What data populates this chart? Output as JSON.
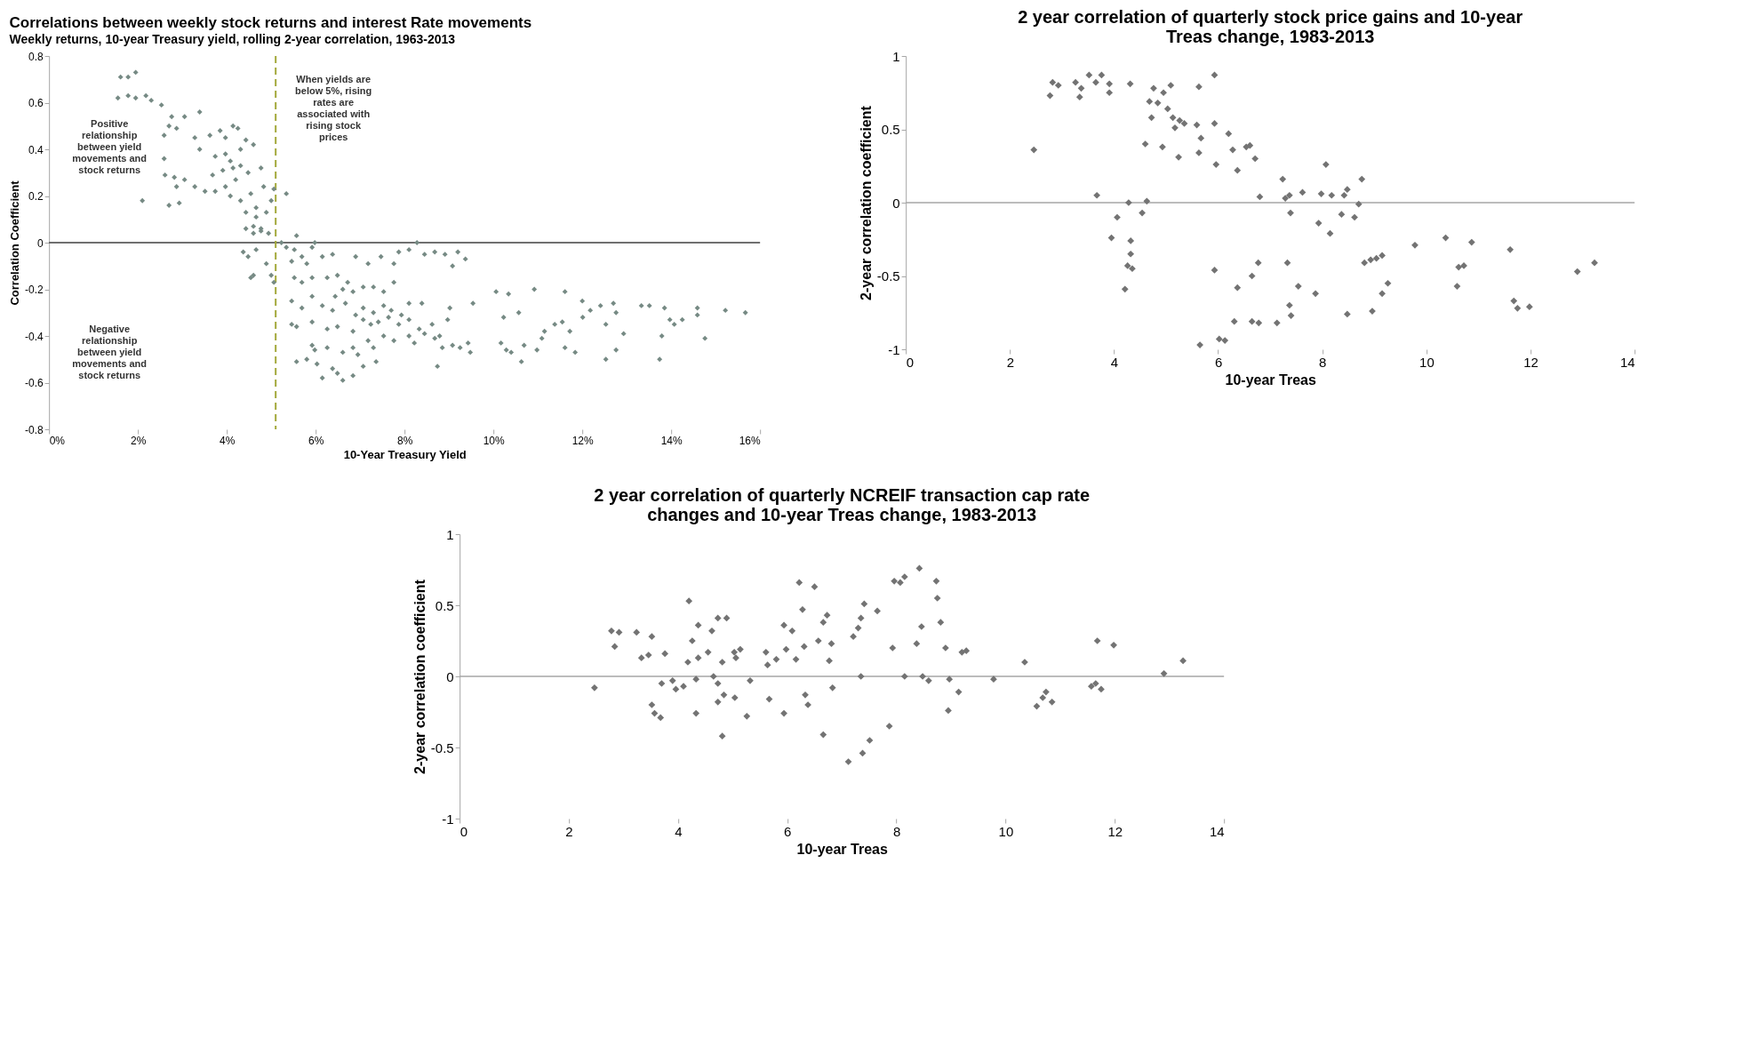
{
  "chart_data": [
    {
      "type": "scatter",
      "title": "Correlations between weekly stock returns and interest Rate movements",
      "subtitle": "Weekly returns, 10-year Treasury yield, rolling 2-year correlation, 1963-2013",
      "xlabel": "10-Year Treasury Yield",
      "ylabel": "Correlation Coefficient",
      "color": "#768a84",
      "marker": "diamond",
      "grid": false,
      "legend": false,
      "xlim": [
        0,
        16
      ],
      "ylim": [
        -0.8,
        0.8
      ],
      "xticks": [
        {
          "value": 0,
          "label": "0%"
        },
        {
          "value": 2,
          "label": "2%"
        },
        {
          "value": 4,
          "label": "4%"
        },
        {
          "value": 6,
          "label": "6%"
        },
        {
          "value": 8,
          "label": "8%"
        },
        {
          "value": 10,
          "label": "10%"
        },
        {
          "value": 12,
          "label": "12%"
        },
        {
          "value": 14,
          "label": "14%"
        },
        {
          "value": 16,
          "label": "16%"
        }
      ],
      "yticks": [
        -0.8,
        -0.6,
        -0.4,
        -0.2,
        0,
        0.2,
        0.4,
        0.6,
        0.8
      ],
      "ref_lines": [
        {
          "axis": "x",
          "value": 5.1,
          "color": "#a3a83a",
          "line_style": "dashed"
        },
        {
          "axis": "y",
          "value": 0,
          "color": "#404040"
        }
      ],
      "annotations": [
        "Positive relationship between yield movements and stock returns",
        "When yields are below 5%, rising rates are associated with rising stock prices",
        "Negative relationship between yield movements and stock returns"
      ],
      "x": [
        1.61,
        1.78,
        1.95,
        1.55,
        1.78,
        1.95,
        2.18,
        2.3,
        2.53,
        2.76,
        3.05,
        3.39,
        2.59,
        2.7,
        2.87,
        2.59,
        2.61,
        2.82,
        3.05,
        2.87,
        2.7,
        2.93,
        2.1,
        3.28,
        3.39,
        3.28,
        3.51,
        3.62,
        3.85,
        3.97,
        4.14,
        4.25,
        3.74,
        3.97,
        4.08,
        4.31,
        4.43,
        4.6,
        3.68,
        3.91,
        4.14,
        4.31,
        3.97,
        4.2,
        4.48,
        3.74,
        4.08,
        4.31,
        4.54,
        4.77,
        4.83,
        4.43,
        4.66,
        4.6,
        4.77,
        4.94,
        5.06,
        5.0,
        5.34,
        4.66,
        4.89,
        4.43,
        4.6,
        4.77,
        4.37,
        4.48,
        4.66,
        4.54,
        4.6,
        4.89,
        5.0,
        5.06,
        5.23,
        5.34,
        5.57,
        5.52,
        5.69,
        5.92,
        5.98,
        5.8,
        5.46,
        5.52,
        5.69,
        5.92,
        6.15,
        6.38,
        6.26,
        6.49,
        6.72,
        6.9,
        7.18,
        7.47,
        7.76,
        7.87,
        8.1,
        8.28,
        8.45,
        8.68,
        8.91,
        9.2,
        9.37,
        9.08,
        7.07,
        6.84,
        6.61,
        6.44,
        7.3,
        7.53,
        7.76,
        5.46,
        5.69,
        5.92,
        6.15,
        6.38,
        6.67,
        6.9,
        7.07,
        7.3,
        7.53,
        7.7,
        7.93,
        8.1,
        8.39,
        5.46,
        5.57,
        5.92,
        6.26,
        6.49,
        6.84,
        7.07,
        7.24,
        7.41,
        7.64,
        7.87,
        8.1,
        8.33,
        8.45,
        8.62,
        8.79,
        8.97,
        9.02,
        7.18,
        7.3,
        7.53,
        7.76,
        8.1,
        8.22,
        8.68,
        8.85,
        9.08,
        9.25,
        9.43,
        9.48,
        8.74,
        9.54,
        5.92,
        5.98,
        6.26,
        6.61,
        6.84,
        5.57,
        5.8,
        6.03,
        6.15,
        6.38,
        6.49,
        6.61,
        6.84,
        7.07,
        7.36,
        6.95,
        10.06,
        10.34,
        10.23,
        10.57,
        10.17,
        10.29,
        10.4,
        10.63,
        10.69,
        10.98,
        10.92,
        11.15,
        11.09,
        11.38,
        11.55,
        11.72,
        11.61,
        11.61,
        11.84,
        12.0,
        12.01,
        12.18,
        12.41,
        12.53,
        12.7,
        12.76,
        12.53,
        12.76,
        12.93,
        13.33,
        13.51,
        13.85,
        13.97,
        13.79,
        13.74,
        14.07,
        14.25,
        14.59,
        14.59,
        14.76,
        15.22,
        15.67
      ],
      "values": [
        0.71,
        0.71,
        0.73,
        0.62,
        0.63,
        0.62,
        0.63,
        0.61,
        0.59,
        0.54,
        0.54,
        0.56,
        0.46,
        0.5,
        0.49,
        0.36,
        0.29,
        0.28,
        0.27,
        0.24,
        0.16,
        0.17,
        0.18,
        0.45,
        0.4,
        0.24,
        0.22,
        0.46,
        0.48,
        0.45,
        0.5,
        0.49,
        0.37,
        0.38,
        0.35,
        0.4,
        0.44,
        0.42,
        0.29,
        0.31,
        0.32,
        0.33,
        0.24,
        0.27,
        0.3,
        0.22,
        0.2,
        0.18,
        0.21,
        0.32,
        0.24,
        0.13,
        0.11,
        0.07,
        0.06,
        0.04,
        0.23,
        0.18,
        0.21,
        0.15,
        0.13,
        0.06,
        0.04,
        0.05,
        -0.04,
        -0.06,
        -0.03,
        -0.15,
        -0.14,
        -0.09,
        -0.14,
        -0.17,
        0.0,
        -0.02,
        0.03,
        -0.03,
        -0.06,
        -0.02,
        0.0,
        -0.09,
        -0.08,
        -0.15,
        -0.17,
        -0.15,
        -0.06,
        -0.05,
        -0.15,
        -0.14,
        -0.17,
        -0.06,
        -0.09,
        -0.06,
        -0.09,
        -0.04,
        -0.03,
        0.0,
        -0.05,
        -0.04,
        -0.05,
        -0.04,
        -0.07,
        -0.1,
        -0.19,
        -0.21,
        -0.2,
        -0.23,
        -0.19,
        -0.21,
        -0.17,
        -0.25,
        -0.28,
        -0.23,
        -0.27,
        -0.29,
        -0.26,
        -0.31,
        -0.28,
        -0.3,
        -0.27,
        -0.29,
        -0.31,
        -0.26,
        -0.26,
        -0.35,
        -0.36,
        -0.34,
        -0.37,
        -0.36,
        -0.38,
        -0.33,
        -0.35,
        -0.34,
        -0.32,
        -0.35,
        -0.33,
        -0.37,
        -0.39,
        -0.35,
        -0.4,
        -0.33,
        -0.28,
        -0.42,
        -0.45,
        -0.4,
        -0.42,
        -0.4,
        -0.43,
        -0.41,
        -0.45,
        -0.44,
        -0.45,
        -0.43,
        -0.47,
        -0.53,
        -0.26,
        -0.44,
        -0.46,
        -0.45,
        -0.47,
        -0.45,
        -0.51,
        -0.5,
        -0.52,
        -0.58,
        -0.54,
        -0.56,
        -0.59,
        -0.57,
        -0.53,
        -0.51,
        -0.48,
        -0.21,
        -0.22,
        -0.32,
        -0.3,
        -0.43,
        -0.46,
        -0.47,
        -0.51,
        -0.44,
        -0.46,
        -0.2,
        -0.38,
        -0.41,
        -0.35,
        -0.34,
        -0.38,
        -0.21,
        -0.45,
        -0.47,
        -0.25,
        -0.32,
        -0.29,
        -0.27,
        -0.35,
        -0.26,
        -0.3,
        -0.5,
        -0.46,
        -0.39,
        -0.27,
        -0.27,
        -0.28,
        -0.33,
        -0.4,
        -0.5,
        -0.35,
        -0.33,
        -0.28,
        -0.31,
        -0.41,
        -0.29,
        -0.3
      ]
    },
    {
      "type": "scatter",
      "title": "2 year correlation of quarterly stock price gains and 10-year Treas change, 1983-2013",
      "xlabel": "10-year Treas",
      "ylabel": "2-year correlation coefficient",
      "color": "#737373",
      "marker": "diamond",
      "grid": false,
      "legend": false,
      "xlim": [
        0,
        14
      ],
      "ylim": [
        -1,
        1
      ],
      "xticks": [
        0,
        2,
        4,
        6,
        8,
        10,
        12,
        14
      ],
      "yticks": [
        -1,
        -0.5,
        0,
        0.5,
        1
      ],
      "ref_lines": [
        {
          "axis": "y",
          "value": 0,
          "color": "#a6a6a6"
        }
      ],
      "x": [
        2.46,
        2.77,
        2.82,
        2.93,
        3.26,
        3.34,
        3.37,
        3.52,
        3.65,
        3.76,
        3.91,
        3.91,
        3.67,
        4.31,
        3.95,
        4.06,
        4.28,
        4.32,
        4.32,
        4.26,
        4.35,
        4.21,
        4.54,
        4.63,
        4.6,
        4.68,
        4.72,
        4.76,
        4.84,
        4.93,
        4.95,
        5.03,
        5.09,
        5.13,
        5.17,
        5.26,
        5.24,
        5.35,
        5.59,
        5.63,
        5.67,
        5.63,
        5.93,
        5.93,
        5.96,
        5.93,
        5.65,
        6.02,
        6.13,
        6.2,
        6.28,
        6.37,
        6.37,
        6.31,
        6.54,
        6.61,
        6.65,
        6.65,
        6.77,
        6.78,
        6.71,
        6.8,
        7.13,
        7.24,
        7.29,
        7.33,
        7.37,
        7.4,
        7.39,
        7.37,
        7.54,
        7.62,
        7.87,
        7.93,
        7.98,
        8.07,
        8.15,
        8.18,
        8.37,
        8.42,
        8.48,
        8.48,
        8.62,
        8.7,
        8.76,
        8.81,
        8.93,
        8.96,
        9.04,
        9.15,
        9.15,
        9.26,
        9.78,
        10.37,
        10.59,
        10.62,
        10.72,
        10.87,
        11.61,
        11.68,
        11.75,
        11.98,
        12.9,
        13.23
      ],
      "values": [
        0.36,
        0.73,
        0.82,
        0.8,
        0.82,
        0.72,
        0.78,
        0.87,
        0.82,
        0.87,
        0.81,
        0.75,
        0.05,
        0.81,
        -0.24,
        -0.1,
        0.0,
        -0.26,
        -0.35,
        -0.43,
        -0.45,
        -0.59,
        -0.07,
        0.01,
        0.4,
        0.69,
        0.58,
        0.78,
        0.68,
        0.38,
        0.75,
        0.64,
        0.8,
        0.58,
        0.51,
        0.56,
        0.31,
        0.54,
        0.53,
        0.79,
        0.44,
        0.34,
        0.87,
        0.54,
        0.26,
        -0.46,
        -0.97,
        -0.93,
        -0.94,
        0.47,
        0.36,
        0.22,
        -0.58,
        -0.81,
        0.38,
        0.39,
        -0.5,
        -0.81,
        -0.41,
        -0.82,
        0.3,
        0.04,
        -0.82,
        0.16,
        0.03,
        -0.41,
        -0.7,
        -0.77,
        -0.07,
        0.05,
        -0.57,
        0.07,
        -0.62,
        -0.14,
        0.06,
        0.26,
        -0.21,
        0.05,
        -0.08,
        0.05,
        0.09,
        -0.76,
        -0.1,
        -0.01,
        0.16,
        -0.41,
        -0.39,
        -0.74,
        -0.38,
        -0.36,
        -0.62,
        -0.55,
        -0.29,
        -0.24,
        -0.57,
        -0.44,
        -0.43,
        -0.27,
        -0.32,
        -0.67,
        -0.72,
        -0.71,
        -0.47,
        -0.41
      ]
    },
    {
      "type": "scatter",
      "title": "2 year correlation of quarterly NCREIF transaction cap rate changes and 10-year Treas change, 1983-2013",
      "xlabel": "10-year Treas",
      "ylabel": "2-year correlation coefficient",
      "color": "#737373",
      "marker": "diamond",
      "grid": false,
      "legend": false,
      "xlim": [
        0,
        14
      ],
      "ylim": [
        -1,
        1
      ],
      "xticks": [
        0,
        2,
        4,
        6,
        8,
        10,
        12,
        14
      ],
      "yticks": [
        -1,
        -0.5,
        0,
        0.5,
        1
      ],
      "ref_lines": [
        {
          "axis": "y",
          "value": 0,
          "color": "#a6a6a6"
        }
      ],
      "x": [
        2.47,
        2.78,
        2.84,
        2.92,
        3.24,
        3.33,
        3.46,
        3.52,
        3.52,
        3.57,
        3.68,
        3.76,
        3.7,
        3.9,
        3.96,
        4.1,
        4.18,
        4.2,
        4.26,
        4.33,
        4.33,
        4.37,
        4.37,
        4.55,
        4.62,
        4.65,
        4.73,
        4.73,
        4.73,
        4.89,
        4.81,
        4.84,
        5.03,
        5.06,
        5.04,
        5.14,
        4.81,
        5.26,
        5.32,
        5.61,
        5.64,
        5.67,
        5.8,
        5.94,
        5.98,
        5.94,
        6.09,
        6.16,
        6.22,
        6.28,
        6.31,
        6.33,
        6.38,
        6.5,
        6.57,
        6.66,
        6.73,
        6.77,
        6.81,
        6.66,
        6.83,
        7.12,
        7.21,
        7.3,
        7.35,
        7.41,
        7.35,
        7.38,
        7.51,
        7.65,
        7.87,
        7.93,
        7.96,
        8.07,
        8.15,
        8.15,
        8.37,
        8.42,
        8.46,
        8.48,
        8.59,
        8.73,
        8.75,
        8.81,
        8.9,
        8.97,
        8.95,
        9.14,
        9.2,
        9.28,
        9.78,
        10.35,
        10.57,
        10.68,
        10.74,
        10.85,
        11.57,
        11.65,
        11.68,
        11.75,
        11.98,
        12.9,
        13.25
      ],
      "values": [
        -0.08,
        0.32,
        0.21,
        0.31,
        0.31,
        0.13,
        0.15,
        0.28,
        -0.2,
        -0.26,
        -0.29,
        0.16,
        -0.05,
        -0.03,
        -0.09,
        -0.07,
        0.1,
        0.53,
        0.25,
        -0.02,
        -0.26,
        0.36,
        0.13,
        0.17,
        0.32,
        0.0,
        -0.05,
        -0.18,
        0.41,
        0.41,
        0.1,
        -0.13,
        0.17,
        0.13,
        -0.15,
        0.19,
        -0.42,
        -0.28,
        -0.03,
        0.17,
        0.08,
        -0.16,
        0.12,
        0.36,
        0.19,
        -0.26,
        0.32,
        0.12,
        0.66,
        0.47,
        0.21,
        -0.13,
        -0.2,
        0.63,
        0.25,
        0.38,
        0.43,
        0.11,
        0.23,
        -0.41,
        -0.08,
        -0.6,
        0.28,
        0.34,
        0.41,
        0.51,
        0.0,
        -0.54,
        -0.45,
        0.46,
        -0.35,
        0.2,
        0.67,
        0.66,
        0.7,
        0.0,
        0.23,
        0.76,
        0.35,
        0.0,
        -0.03,
        0.67,
        0.55,
        0.38,
        0.2,
        -0.02,
        -0.24,
        -0.11,
        0.17,
        0.18,
        -0.02,
        0.1,
        -0.21,
        -0.15,
        -0.11,
        -0.18,
        -0.07,
        -0.05,
        0.25,
        -0.09,
        0.22,
        0.02,
        0.11
      ]
    }
  ]
}
